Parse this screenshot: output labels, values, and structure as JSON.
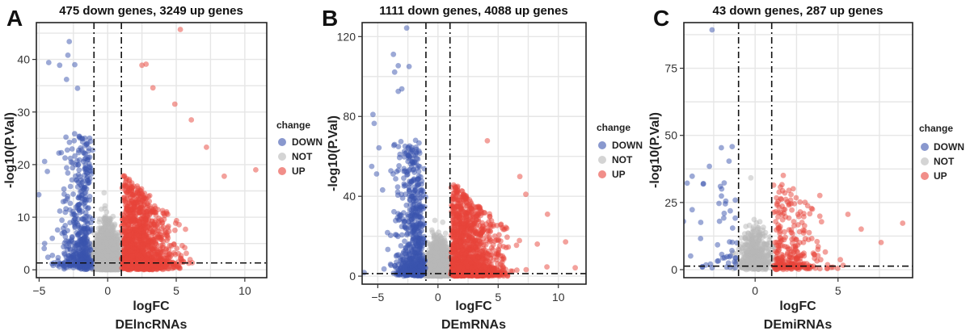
{
  "chart_data": [
    {
      "type": "scatter",
      "panel_label": "A",
      "title": "475 down genes, 3249 up genes",
      "xlabel": "logFC",
      "ylabel": "-log10(P.Val)",
      "caption": "DElncRNAs",
      "xlim": [
        -5.2,
        11.6
      ],
      "ylim": [
        -1.5,
        47
      ],
      "xticks": [
        -5,
        0,
        5,
        10
      ],
      "yticks": [
        0,
        10,
        20,
        30,
        40
      ],
      "thresholds": {
        "x": [
          -1,
          1
        ],
        "y": 1.3
      },
      "legend_title": "change",
      "legend": [
        "DOWN",
        "NOT",
        "UP"
      ],
      "counts": {
        "down": 475,
        "up": 3249
      },
      "notable_points": {
        "up": [
          [
            5.3,
            45.7
          ],
          [
            2.8,
            39.1
          ],
          [
            2.5,
            38.9
          ],
          [
            10.8,
            19.0
          ],
          [
            7.2,
            23.3
          ],
          [
            8.5,
            17.8
          ],
          [
            6.1,
            28.5
          ],
          [
            4.9,
            31.5
          ],
          [
            3.3,
            34.6
          ]
        ],
        "down": [
          [
            -2.8,
            43.4
          ],
          [
            -2.9,
            40.8
          ],
          [
            -4.3,
            39.4
          ],
          [
            -2.4,
            39.0
          ],
          [
            -3.5,
            38.9
          ],
          [
            -3.0,
            36.2
          ],
          [
            -4.6,
            20.6
          ],
          [
            -4.4,
            18.7
          ],
          [
            -4.6,
            5.0
          ],
          [
            -2.2,
            34.5
          ]
        ]
      }
    },
    {
      "type": "scatter",
      "panel_label": "B",
      "title": "1111 down genes, 4088 up genes",
      "xlabel": "logFC",
      "ylabel": "-log10(P.Val)",
      "caption": "DEmRNAs",
      "xlim": [
        -6.3,
        12.3
      ],
      "ylim": [
        -4,
        127
      ],
      "xticks": [
        -5,
        0,
        5,
        10
      ],
      "yticks": [
        0,
        40,
        80,
        120
      ],
      "thresholds": {
        "x": [
          -1,
          1
        ],
        "y": 1.3
      },
      "legend_title": "change",
      "legend": [
        "DOWN",
        "NOT",
        "UP"
      ],
      "counts": {
        "down": 1111,
        "up": 4088
      },
      "notable_points": {
        "up": [
          [
            4.1,
            67.8
          ],
          [
            10.6,
            17.2
          ],
          [
            11.4,
            4.2
          ],
          [
            9.1,
            31.0
          ],
          [
            7.3,
            41.0
          ],
          [
            6.8,
            49.9
          ]
        ],
        "down": [
          [
            -2.6,
            124.3
          ],
          [
            -3.7,
            111.1
          ],
          [
            -3.3,
            105.4
          ],
          [
            -2.4,
            105.0
          ],
          [
            -3.6,
            102.2
          ],
          [
            -3.0,
            93.8
          ],
          [
            -3.3,
            92.6
          ],
          [
            -5.4,
            81.0
          ],
          [
            -5.3,
            76.5
          ],
          [
            -4.9,
            64.3
          ],
          [
            -5.5,
            55.0
          ],
          [
            -5.1,
            51.2
          ],
          [
            -4.6,
            43.2
          ]
        ]
      }
    },
    {
      "type": "scatter",
      "panel_label": "C",
      "title": "43 down genes, 287 up genes",
      "xlabel": "logFC",
      "ylabel": "-log10(P.Val)",
      "caption": "DEmiRNAs",
      "xlim": [
        -4.3,
        9.5
      ],
      "ylim": [
        -3,
        92
      ],
      "xticks": [
        0,
        5
      ],
      "yticks": [
        0,
        25,
        50,
        75
      ],
      "thresholds": {
        "x": [
          -1,
          1
        ],
        "y": 1.3
      },
      "legend_title": "change",
      "legend": [
        "DOWN",
        "NOT",
        "UP"
      ],
      "counts": {
        "down": 43,
        "up": 287
      },
      "notable_points": {
        "up": [
          [
            1.7,
            35.1
          ],
          [
            2.3,
            30.1
          ],
          [
            3.9,
            27.6
          ],
          [
            8.9,
            17.3
          ],
          [
            5.6,
            20.6
          ],
          [
            7.6,
            10.1
          ],
          [
            3.4,
            22.8
          ],
          [
            6.4,
            15.1
          ]
        ],
        "down": [
          [
            -2.6,
            89.3
          ],
          [
            -3.8,
            34.8
          ],
          [
            -4.1,
            32.2
          ],
          [
            -3.8,
            22.3
          ],
          [
            -1.2,
            25.9
          ],
          [
            -1.8,
            24.5
          ],
          [
            -1.5,
            21.9
          ],
          [
            -1.2,
            19.2
          ],
          [
            -1.1,
            10.0
          ],
          [
            -1.4,
            7.1
          ],
          [
            -1.2,
            4.3
          ]
        ]
      }
    }
  ],
  "colors": {
    "up": "#e8433a",
    "down": "#3a54ad",
    "not": "#b8b8b8"
  }
}
